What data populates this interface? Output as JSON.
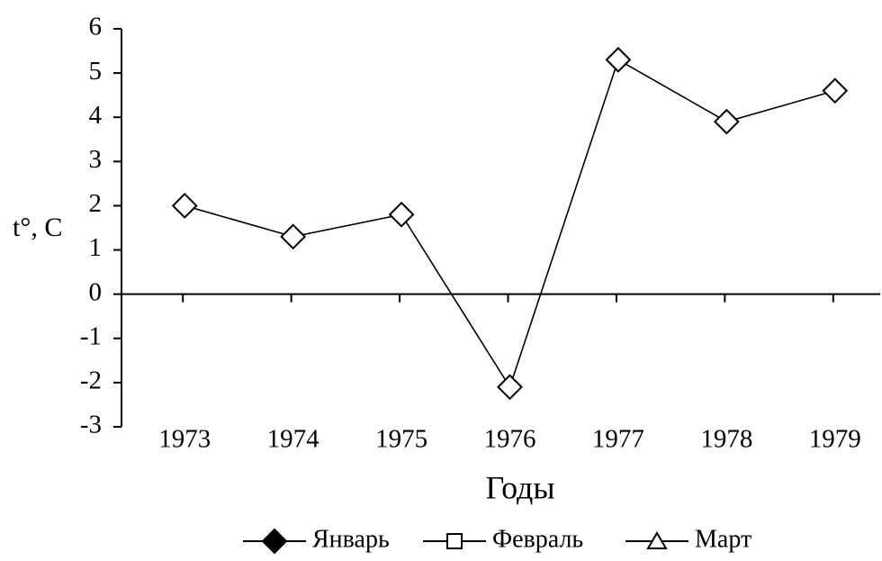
{
  "chart_data": {
    "type": "line",
    "x_label": "Годы",
    "y_label": "t°, С",
    "categories": [
      "1973",
      "1974",
      "1975",
      "1976",
      "1977",
      "1978",
      "1979"
    ],
    "series": [
      {
        "name": "Январь",
        "color": "#000000",
        "marker": "diamond",
        "values": [
          2.0,
          1.3,
          1.8,
          -2.1,
          5.3,
          3.9,
          4.6
        ]
      },
      {
        "name": "Февраль",
        "color": "#000000",
        "marker": "square",
        "values": [
          null,
          null,
          null,
          null,
          null,
          null,
          null
        ]
      },
      {
        "name": "Март",
        "color": "#000000",
        "marker": "triangle",
        "values": [
          null,
          null,
          null,
          null,
          null,
          null,
          null
        ]
      }
    ],
    "ylim": [
      -3,
      6
    ],
    "yticks": [
      -3,
      -2,
      -1,
      0,
      1,
      2,
      3,
      4,
      5,
      6
    ],
    "grid": false,
    "legend": "bottom"
  }
}
